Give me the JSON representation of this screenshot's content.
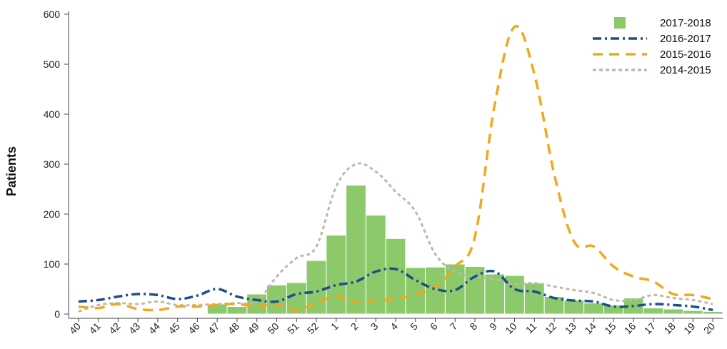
{
  "chart_data": {
    "type": "bar",
    "title": "",
    "xlabel": "",
    "ylabel": "Patients",
    "ylim": [
      0,
      600
    ],
    "yticks": [
      0,
      100,
      200,
      300,
      400,
      500,
      600
    ],
    "grid": false,
    "legend_position": "top-right",
    "categories": [
      "40",
      "41",
      "42",
      "43",
      "44",
      "45",
      "46",
      "47",
      "48",
      "49",
      "50",
      "51",
      "52",
      "1",
      "2",
      "3",
      "4",
      "5",
      "6",
      "7",
      "8",
      "9",
      "10",
      "11",
      "12",
      "13",
      "14",
      "15",
      "16",
      "17",
      "18",
      "19",
      "20"
    ],
    "series": [
      {
        "name": "2017-2018",
        "type": "bar",
        "color": "#8cc96a",
        "values": [
          null,
          null,
          null,
          null,
          null,
          null,
          null,
          20,
          15,
          40,
          58,
          63,
          107,
          158,
          258,
          198,
          151,
          93,
          94,
          100,
          95,
          80,
          77,
          62,
          35,
          28,
          22,
          18,
          32,
          12,
          10,
          7,
          5
        ]
      },
      {
        "name": "2016-2017",
        "type": "line",
        "style": "dashdot",
        "color": "#1f4e8c",
        "values": [
          25,
          28,
          35,
          40,
          38,
          30,
          37,
          50,
          35,
          28,
          25,
          40,
          45,
          58,
          65,
          85,
          90,
          68,
          50,
          48,
          75,
          85,
          50,
          45,
          32,
          27,
          25,
          15,
          16,
          20,
          18,
          15,
          8
        ]
      },
      {
        "name": "2015-2016",
        "type": "line",
        "style": "dashed",
        "color": "#f0a81e",
        "values": [
          15,
          12,
          20,
          10,
          8,
          15,
          15,
          18,
          20,
          15,
          20,
          8,
          22,
          35,
          23,
          28,
          30,
          40,
          55,
          95,
          155,
          420,
          575,
          480,
          280,
          145,
          135,
          95,
          75,
          65,
          40,
          38,
          30
        ]
      },
      {
        "name": "2014-2015",
        "type": "line",
        "style": "dotted",
        "color": "#bdbaa8",
        "values": [
          5,
          18,
          22,
          20,
          25,
          18,
          18,
          20,
          22,
          25,
          75,
          112,
          135,
          255,
          300,
          285,
          245,
          205,
          120,
          85,
          75,
          70,
          60,
          62,
          55,
          48,
          42,
          28,
          28,
          38,
          32,
          28,
          20
        ]
      }
    ]
  }
}
